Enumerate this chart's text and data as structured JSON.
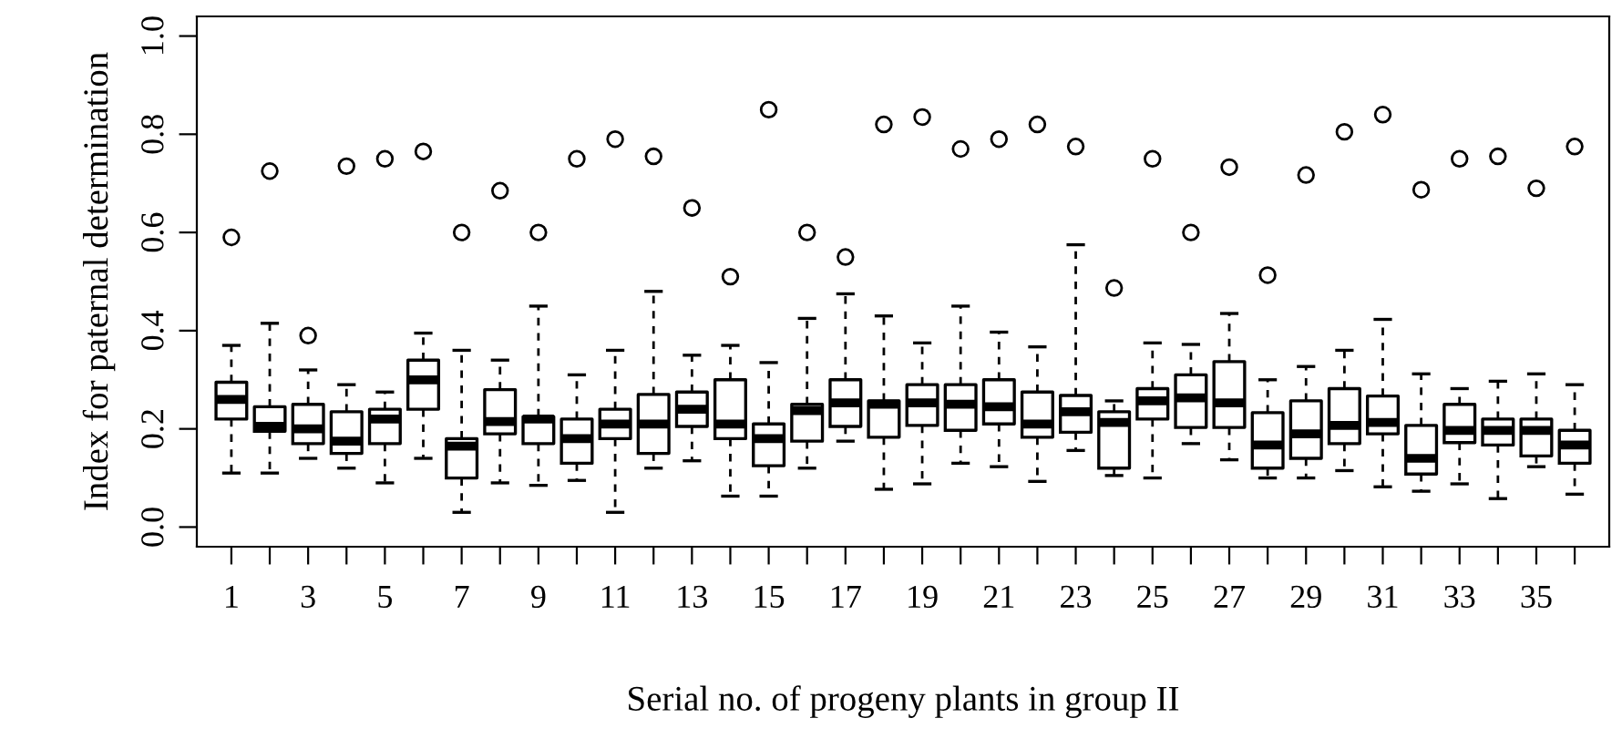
{
  "chart_data": {
    "type": "box",
    "xlabel": "Serial no. of progeny plants in group II",
    "ylabel": "Index for paternal determination",
    "categories": [
      "1",
      null,
      "3",
      null,
      "5",
      null,
      "7",
      null,
      "9",
      null,
      "11",
      null,
      "13",
      null,
      "15",
      null,
      "17",
      null,
      "19",
      null,
      "21",
      null,
      "23",
      null,
      "25",
      null,
      "27",
      null,
      "29",
      null,
      "31",
      null,
      "33",
      null,
      "35",
      null
    ],
    "ylim": [
      -0.04,
      1.04
    ],
    "yticks": [
      {
        "value": 0,
        "label": "0.0"
      },
      {
        "value": 0.2,
        "label": "0.2"
      },
      {
        "value": 0.4,
        "label": "0.4"
      },
      {
        "value": 0.6,
        "label": "0.6"
      },
      {
        "value": 0.8,
        "label": "0.8"
      },
      {
        "value": 1,
        "label": "1.0"
      }
    ],
    "grid": false,
    "legend": false,
    "color": "#000000",
    "boxes": [
      {
        "low": 0.11,
        "q1": 0.22,
        "median": 0.26,
        "q3": 0.295,
        "high": 0.37,
        "outliers": [
          0.59
        ]
      },
      {
        "low": 0.11,
        "q1": 0.195,
        "median": 0.205,
        "q3": 0.245,
        "high": 0.415,
        "outliers": [
          0.725
        ]
      },
      {
        "low": 0.14,
        "q1": 0.17,
        "median": 0.2,
        "q3": 0.25,
        "high": 0.32,
        "outliers": [
          0.39
        ]
      },
      {
        "low": 0.12,
        "q1": 0.15,
        "median": 0.175,
        "q3": 0.235,
        "high": 0.29,
        "outliers": [
          0.735
        ]
      },
      {
        "low": 0.09,
        "q1": 0.17,
        "median": 0.22,
        "q3": 0.24,
        "high": 0.275,
        "outliers": [
          0.75
        ]
      },
      {
        "low": 0.14,
        "q1": 0.24,
        "median": 0.3,
        "q3": 0.34,
        "high": 0.395,
        "outliers": [
          0.765
        ]
      },
      {
        "low": 0.03,
        "q1": 0.1,
        "median": 0.165,
        "q3": 0.18,
        "high": 0.36,
        "outliers": [
          0.6
        ]
      },
      {
        "low": 0.09,
        "q1": 0.19,
        "median": 0.215,
        "q3": 0.28,
        "high": 0.34,
        "outliers": [
          0.685
        ]
      },
      {
        "low": 0.085,
        "q1": 0.17,
        "median": 0.22,
        "q3": 0.225,
        "high": 0.45,
        "outliers": [
          0.6
        ]
      },
      {
        "low": 0.095,
        "q1": 0.13,
        "median": 0.18,
        "q3": 0.22,
        "high": 0.31,
        "outliers": [
          0.75
        ]
      },
      {
        "low": 0.03,
        "q1": 0.18,
        "median": 0.21,
        "q3": 0.24,
        "high": 0.36,
        "outliers": [
          0.79
        ]
      },
      {
        "low": 0.12,
        "q1": 0.15,
        "median": 0.21,
        "q3": 0.27,
        "high": 0.48,
        "outliers": [
          0.755
        ]
      },
      {
        "low": 0.135,
        "q1": 0.205,
        "median": 0.24,
        "q3": 0.275,
        "high": 0.35,
        "outliers": [
          0.65
        ]
      },
      {
        "low": 0.063,
        "q1": 0.18,
        "median": 0.21,
        "q3": 0.3,
        "high": 0.37,
        "outliers": [
          0.51
        ]
      },
      {
        "low": 0.063,
        "q1": 0.125,
        "median": 0.18,
        "q3": 0.21,
        "high": 0.335,
        "outliers": [
          0.85
        ]
      },
      {
        "low": 0.12,
        "q1": 0.175,
        "median": 0.237,
        "q3": 0.25,
        "high": 0.425,
        "outliers": [
          0.6
        ]
      },
      {
        "low": 0.175,
        "q1": 0.205,
        "median": 0.253,
        "q3": 0.3,
        "high": 0.475,
        "outliers": [
          0.55
        ]
      },
      {
        "low": 0.077,
        "q1": 0.183,
        "median": 0.25,
        "q3": 0.257,
        "high": 0.43,
        "outliers": [
          0.82
        ]
      },
      {
        "low": 0.088,
        "q1": 0.207,
        "median": 0.253,
        "q3": 0.29,
        "high": 0.375,
        "outliers": [
          0.835
        ]
      },
      {
        "low": 0.13,
        "q1": 0.197,
        "median": 0.25,
        "q3": 0.29,
        "high": 0.45,
        "outliers": [
          0.77
        ]
      },
      {
        "low": 0.123,
        "q1": 0.21,
        "median": 0.245,
        "q3": 0.3,
        "high": 0.397,
        "outliers": [
          0.79
        ]
      },
      {
        "low": 0.093,
        "q1": 0.183,
        "median": 0.21,
        "q3": 0.275,
        "high": 0.367,
        "outliers": [
          0.82
        ]
      },
      {
        "low": 0.156,
        "q1": 0.193,
        "median": 0.235,
        "q3": 0.268,
        "high": 0.575,
        "outliers": [
          0.775
        ]
      },
      {
        "low": 0.105,
        "q1": 0.12,
        "median": 0.213,
        "q3": 0.235,
        "high": 0.257,
        "outliers": [
          0.487
        ]
      },
      {
        "low": 0.1,
        "q1": 0.22,
        "median": 0.257,
        "q3": 0.282,
        "high": 0.375,
        "outliers": [
          0.75
        ]
      },
      {
        "low": 0.17,
        "q1": 0.203,
        "median": 0.263,
        "q3": 0.31,
        "high": 0.372,
        "outliers": [
          0.6
        ]
      },
      {
        "low": 0.137,
        "q1": 0.203,
        "median": 0.253,
        "q3": 0.337,
        "high": 0.435,
        "outliers": [
          0.733
        ]
      },
      {
        "low": 0.1,
        "q1": 0.12,
        "median": 0.167,
        "q3": 0.233,
        "high": 0.3,
        "outliers": [
          0.513
        ]
      },
      {
        "low": 0.1,
        "q1": 0.14,
        "median": 0.19,
        "q3": 0.257,
        "high": 0.327,
        "outliers": [
          0.717
        ]
      },
      {
        "low": 0.115,
        "q1": 0.17,
        "median": 0.207,
        "q3": 0.282,
        "high": 0.36,
        "outliers": [
          0.805
        ]
      },
      {
        "low": 0.082,
        "q1": 0.19,
        "median": 0.213,
        "q3": 0.267,
        "high": 0.423,
        "outliers": [
          0.84
        ]
      },
      {
        "low": 0.073,
        "q1": 0.108,
        "median": 0.14,
        "q3": 0.207,
        "high": 0.312,
        "outliers": [
          0.687
        ]
      },
      {
        "low": 0.088,
        "q1": 0.172,
        "median": 0.197,
        "q3": 0.25,
        "high": 0.282,
        "outliers": [
          0.75
        ]
      },
      {
        "low": 0.058,
        "q1": 0.167,
        "median": 0.197,
        "q3": 0.22,
        "high": 0.297,
        "outliers": [
          0.755
        ]
      },
      {
        "low": 0.123,
        "q1": 0.145,
        "median": 0.197,
        "q3": 0.22,
        "high": 0.312,
        "outliers": [
          0.69
        ]
      },
      {
        "low": 0.067,
        "q1": 0.13,
        "median": 0.167,
        "q3": 0.197,
        "high": 0.29,
        "outliers": [
          0.775
        ]
      }
    ]
  }
}
